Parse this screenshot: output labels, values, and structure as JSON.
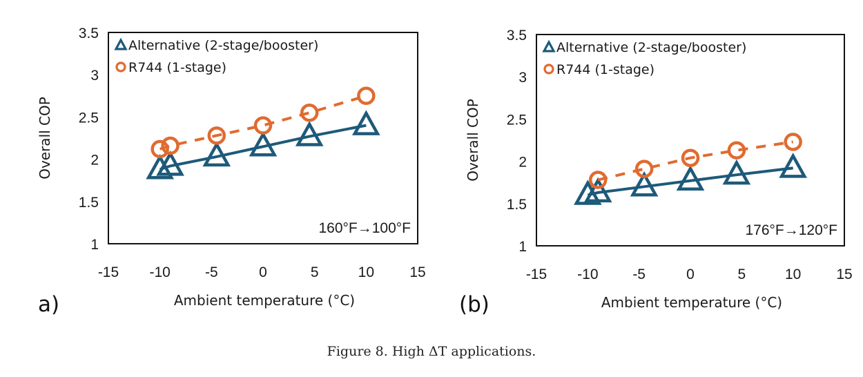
{
  "figure": {
    "caption": "Figure 8. High ΔT applications."
  },
  "colors": {
    "alternative": "#1d5a7a",
    "r744": "#e06b30",
    "axis": "#111111"
  },
  "chart_data": [
    {
      "type": "line",
      "panel_label": "a)",
      "annotation": "160°F→100°F",
      "title": "",
      "xlabel": "Ambient temperature (°C)",
      "ylabel": "Overall COP",
      "xlim": [
        -15,
        15
      ],
      "ylim": [
        1,
        3.5
      ],
      "xticks": [
        "-15",
        "-10",
        "-5",
        "0",
        "5",
        "10",
        "15"
      ],
      "yticks": [
        "1",
        "1.5",
        "2",
        "2.5",
        "3",
        "3.5"
      ],
      "grid": false,
      "legend": "top-left",
      "series": [
        {
          "name": "Alternative (2-stage/booster)",
          "marker": "triangle",
          "line": "solid",
          "x": [
            -10,
            -9,
            -4.5,
            0,
            4.5,
            10
          ],
          "y": [
            1.88,
            1.92,
            2.03,
            2.15,
            2.27,
            2.4
          ]
        },
        {
          "name": "R744 (1-stage)",
          "marker": "circle",
          "line": "dashed",
          "x": [
            -10,
            -9,
            -4.5,
            0,
            4.5,
            10
          ],
          "y": [
            2.12,
            2.16,
            2.28,
            2.4,
            2.55,
            2.75
          ]
        }
      ]
    },
    {
      "type": "line",
      "panel_label": "(b)",
      "annotation": "176°F→120°F",
      "title": "",
      "xlabel": "Ambient temperature (°C)",
      "ylabel": "Overall COP",
      "xlim": [
        -15,
        15
      ],
      "ylim": [
        1,
        3.5
      ],
      "xticks": [
        "-15",
        "-10",
        "-5",
        "0",
        "5",
        "10",
        "15"
      ],
      "yticks": [
        "1",
        "1.5",
        "2",
        "2.5",
        "3",
        "3.5"
      ],
      "grid": false,
      "legend": "top-left",
      "series": [
        {
          "name": "Alternative (2-stage/booster)",
          "marker": "triangle",
          "line": "solid",
          "x": [
            -10,
            -9,
            -4.5,
            0,
            4.5,
            10
          ],
          "y": [
            1.6,
            1.63,
            1.7,
            1.77,
            1.84,
            1.92
          ]
        },
        {
          "name": "R744 (1-stage)",
          "marker": "circle",
          "line": "dashed",
          "x": [
            -9,
            -4.5,
            0,
            4.5,
            10
          ],
          "y": [
            1.78,
            1.91,
            2.04,
            2.13,
            2.23
          ]
        }
      ]
    }
  ]
}
